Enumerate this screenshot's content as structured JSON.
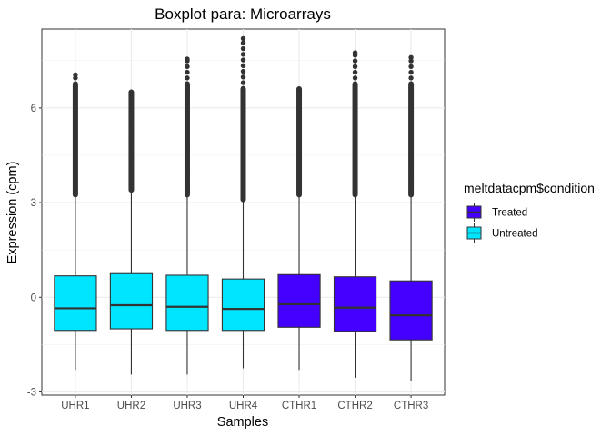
{
  "chart_data": {
    "type": "boxplot",
    "title": "Boxplot para: Microarrays",
    "xlabel": "Samples",
    "ylabel": "Expression (cpm)",
    "ylim": [
      -3.1,
      8.5
    ],
    "yticks": [
      -3,
      0,
      3,
      6
    ],
    "grid": true,
    "legend": {
      "title": "meltdatacpm$condition",
      "position": "right",
      "entries": [
        {
          "label": "Treated",
          "color": "#4400ff"
        },
        {
          "label": "Untreated",
          "color": "#00e5ff"
        }
      ]
    },
    "categories": [
      "UHR1",
      "UHR2",
      "UHR3",
      "UHR4",
      "CTHR1",
      "CTHR2",
      "CTHR3"
    ],
    "boxes": [
      {
        "category": "UHR1",
        "condition": "Untreated",
        "whisker_low": -2.3,
        "q1": -1.05,
        "median": -0.35,
        "q3": 0.68,
        "whisker_high": 3.25,
        "outlier_max": 7.05
      },
      {
        "category": "UHR2",
        "condition": "Untreated",
        "whisker_low": -2.45,
        "q1": -1.0,
        "median": -0.25,
        "q3": 0.75,
        "whisker_high": 3.4,
        "outlier_max": 6.5
      },
      {
        "category": "UHR3",
        "condition": "Untreated",
        "whisker_low": -2.45,
        "q1": -1.05,
        "median": -0.3,
        "q3": 0.7,
        "whisker_high": 3.25,
        "outlier_max": 7.55
      },
      {
        "category": "UHR4",
        "condition": "Untreated",
        "whisker_low": -2.25,
        "q1": -1.05,
        "median": -0.37,
        "q3": 0.58,
        "whisker_high": 3.1,
        "outlier_max": 8.2
      },
      {
        "category": "CTHR1",
        "condition": "Treated",
        "whisker_low": -2.3,
        "q1": -0.95,
        "median": -0.22,
        "q3": 0.72,
        "whisker_high": 3.25,
        "outlier_max": 6.6
      },
      {
        "category": "CTHR2",
        "condition": "Treated",
        "whisker_low": -2.55,
        "q1": -1.08,
        "median": -0.33,
        "q3": 0.65,
        "whisker_high": 3.25,
        "outlier_max": 7.75
      },
      {
        "category": "CTHR3",
        "condition": "Treated",
        "whisker_low": -2.65,
        "q1": -1.35,
        "median": -0.57,
        "q3": 0.52,
        "whisker_high": 3.25,
        "outlier_max": 7.6
      }
    ]
  }
}
